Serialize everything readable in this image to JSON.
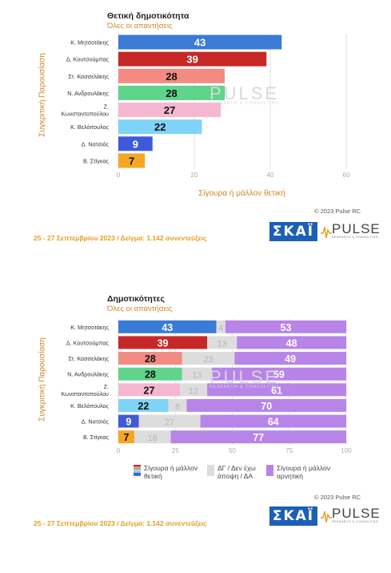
{
  "chart_data": [
    {
      "type": "bar",
      "title": "Θετική δημοτικότητα",
      "subtitle": "Όλες οι απαντήσεις",
      "ylabel": "Συγκριτική Παρουσίαση",
      "xlabel": "Σίγουρα ή μάλλον θετική",
      "orientation": "horizontal",
      "categories": [
        "Κ. Μητσοτάκης",
        "Δ. Κουτσούμπας",
        "Στ. Κασσελάκης",
        "Ν. Ανδρουλάκης",
        "Ζ. Κωνσταντοπούλου",
        "Κ. Βελόπουλος",
        "Δ. Νατσιός",
        "Β. Στίγκας"
      ],
      "values": [
        43,
        39,
        28,
        28,
        27,
        22,
        9,
        7
      ],
      "bar_colors": [
        "#3a7bd5",
        "#c62828",
        "#f28b82",
        "#5fd48a",
        "#f5b7cf",
        "#7fd3f7",
        "#3f5ad8",
        "#f5a623"
      ],
      "label_colors": [
        "#ffffff",
        "#ffffff",
        "#111111",
        "#111111",
        "#111111",
        "#111111",
        "#ffffff",
        "#111111"
      ],
      "xlim": [
        0,
        60
      ],
      "xticks": [
        0,
        20,
        40,
        60
      ],
      "grid": true
    },
    {
      "type": "bar",
      "stacked": true,
      "orientation": "horizontal",
      "title": "Δημοτικότητες",
      "subtitle": "Όλες οι απαντήσεις",
      "ylabel": "Συγκριτική Παρουσίαση",
      "categories": [
        "Κ. Μητσοτάκης",
        "Δ. Κουτσούμπας",
        "Στ. Κασσελάκης",
        "Ν. Ανδρουλάκης",
        "Ζ. Κωνσταντοπούλου",
        "Κ. Βελόπουλος",
        "Δ. Νατσιός",
        "Β. Στίγκας"
      ],
      "series": [
        {
          "name": "Σίγουρα ή μάλλον θετική",
          "values": [
            43,
            39,
            28,
            28,
            27,
            22,
            9,
            7
          ]
        },
        {
          "name": "ΔΓ / Δεν έχω άποψη / ΔΑ",
          "values": [
            4,
            13,
            23,
            13,
            12,
            8,
            27,
            16
          ]
        },
        {
          "name": "Σίγουρα ή μάλλον αρνητική",
          "values": [
            53,
            48,
            49,
            59,
            61,
            70,
            64,
            77
          ]
        }
      ],
      "neutral_color": "#dddddd",
      "negative_color": "#b784e8",
      "xlim": [
        0,
        100
      ],
      "xticks": [
        0,
        25,
        50,
        75,
        100
      ],
      "legend_position": "bottom"
    }
  ],
  "copyright": "© 2023 Pulse RC",
  "footer": "25 - 27 Σεπτεμβρίου  2023  /  Δείγμα:  1.142 συνεντεύξεις",
  "logos": {
    "skai": "ΣΚΑΪ",
    "pulse": "PULSE",
    "pulse_sub": "RESEARCH & CONSULTING"
  },
  "watermark": {
    "main": "PULSE",
    "sub": "RESEARCH & CONSULTING"
  }
}
